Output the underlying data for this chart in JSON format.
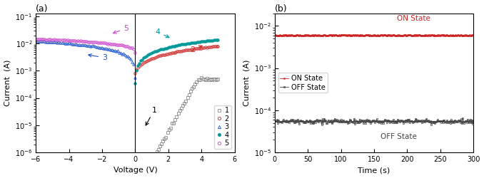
{
  "panel_a": {
    "title": "(a)",
    "xlabel": "Voltage (V)",
    "ylabel": "Current  (A)",
    "xlim": [
      -6,
      6
    ],
    "ylim_log": [
      1e-06,
      0.13
    ],
    "scan1_color": "#888888",
    "scan2_color": "#cc2222",
    "scan3_color": "#2255cc",
    "scan4_color": "#009999",
    "scan5_color": "#cc44cc"
  },
  "panel_b": {
    "title": "(b)",
    "xlabel": "Time (s)",
    "ylabel": "Current  (A)",
    "xlim": [
      0,
      300
    ],
    "ylim_log": [
      1e-05,
      0.02
    ],
    "on_color": "#cc2222",
    "off_color": "#444444",
    "on_value": 0.006,
    "off_value": 5.5e-05,
    "on_label": "ON State",
    "off_label": "OFF State"
  }
}
